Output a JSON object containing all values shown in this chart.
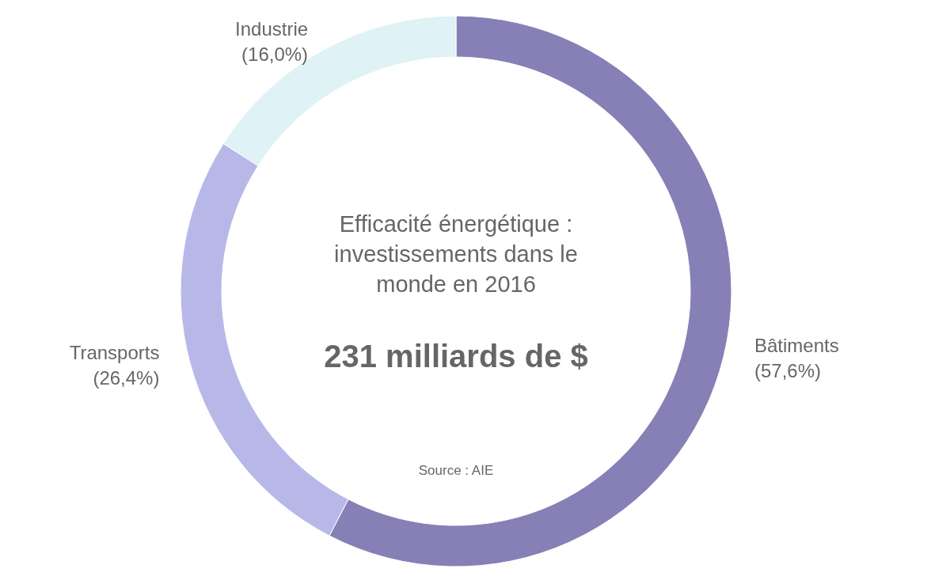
{
  "chart_data": {
    "type": "donut",
    "title": "Efficacité énergétique : investissements dans le monde en 2016",
    "subtitle": "231 milliards de $",
    "annotations": [
      "Source : AIE"
    ],
    "categories": [
      "Bâtiments",
      "Transports",
      "Industrie"
    ],
    "values": [
      57.6,
      26.4,
      16.0
    ],
    "value_labels": [
      "(57,6%)",
      "(26,4%)",
      "(16,0%)"
    ],
    "colors": [
      "#8680b6",
      "#b8b8e8",
      "#dff2f5"
    ]
  }
}
